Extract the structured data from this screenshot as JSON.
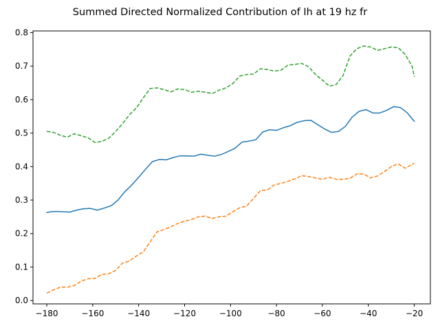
{
  "chart_data": {
    "type": "line",
    "title": "Summed Directed Normalized Contribution of Ih at 19 hz fr",
    "xlabel": "",
    "ylabel": "",
    "xlim": [
      -186,
      -13
    ],
    "ylim": [
      -0.01,
      0.805
    ],
    "xticks": [
      -180,
      -160,
      -140,
      -120,
      -100,
      -80,
      -60,
      -40,
      -20
    ],
    "yticks": [
      0.0,
      0.1,
      0.2,
      0.3,
      0.4,
      0.5,
      0.6,
      0.7,
      0.8
    ],
    "grid": false,
    "legend": "none",
    "series": [
      {
        "color": "#1f77b4",
        "style": "solid",
        "points": [
          [
            -180,
            0.263
          ],
          [
            -178,
            0.265
          ],
          [
            -176,
            0.266
          ],
          [
            -173,
            0.265
          ],
          [
            -170,
            0.264
          ],
          [
            -167,
            0.27
          ],
          [
            -164,
            0.274
          ],
          [
            -161,
            0.275
          ],
          [
            -158,
            0.27
          ],
          [
            -155,
            0.276
          ],
          [
            -152,
            0.283
          ],
          [
            -149,
            0.3
          ],
          [
            -146,
            0.325
          ],
          [
            -143,
            0.345
          ],
          [
            -140,
            0.368
          ],
          [
            -137,
            0.392
          ],
          [
            -134,
            0.415
          ],
          [
            -131,
            0.421
          ],
          [
            -128,
            0.42
          ],
          [
            -125,
            0.427
          ],
          [
            -122,
            0.432
          ],
          [
            -119,
            0.432
          ],
          [
            -116,
            0.431
          ],
          [
            -113,
            0.437
          ],
          [
            -110,
            0.434
          ],
          [
            -107,
            0.431
          ],
          [
            -104,
            0.436
          ],
          [
            -101,
            0.445
          ],
          [
            -98,
            0.455
          ],
          [
            -95,
            0.473
          ],
          [
            -92,
            0.476
          ],
          [
            -89,
            0.48
          ],
          [
            -86,
            0.503
          ],
          [
            -83,
            0.51
          ],
          [
            -80,
            0.508
          ],
          [
            -77,
            0.516
          ],
          [
            -74,
            0.522
          ],
          [
            -71,
            0.532
          ],
          [
            -68,
            0.537
          ],
          [
            -65,
            0.538
          ],
          [
            -62,
            0.525
          ],
          [
            -59,
            0.512
          ],
          [
            -56,
            0.502
          ],
          [
            -53,
            0.505
          ],
          [
            -50,
            0.52
          ],
          [
            -47,
            0.548
          ],
          [
            -44,
            0.565
          ],
          [
            -41,
            0.57
          ],
          [
            -38,
            0.56
          ],
          [
            -35,
            0.56
          ],
          [
            -32,
            0.568
          ],
          [
            -29,
            0.579
          ],
          [
            -26,
            0.576
          ],
          [
            -23,
            0.56
          ],
          [
            -20,
            0.535
          ]
        ]
      },
      {
        "color": "#ff7f0e",
        "style": "dashed",
        "points": [
          [
            -180,
            0.022
          ],
          [
            -177,
            0.032
          ],
          [
            -174,
            0.04
          ],
          [
            -171,
            0.04
          ],
          [
            -168,
            0.045
          ],
          [
            -165,
            0.058
          ],
          [
            -162,
            0.065
          ],
          [
            -159,
            0.066
          ],
          [
            -156,
            0.078
          ],
          [
            -153,
            0.08
          ],
          [
            -150,
            0.09
          ],
          [
            -147,
            0.112
          ],
          [
            -144,
            0.118
          ],
          [
            -141,
            0.133
          ],
          [
            -138,
            0.145
          ],
          [
            -135,
            0.175
          ],
          [
            -132,
            0.205
          ],
          [
            -129,
            0.212
          ],
          [
            -126,
            0.22
          ],
          [
            -123,
            0.23
          ],
          [
            -120,
            0.237
          ],
          [
            -117,
            0.242
          ],
          [
            -114,
            0.25
          ],
          [
            -111,
            0.252
          ],
          [
            -108,
            0.245
          ],
          [
            -105,
            0.25
          ],
          [
            -102,
            0.252
          ],
          [
            -99,
            0.265
          ],
          [
            -96,
            0.277
          ],
          [
            -93,
            0.282
          ],
          [
            -90,
            0.305
          ],
          [
            -87,
            0.328
          ],
          [
            -84,
            0.33
          ],
          [
            -81,
            0.345
          ],
          [
            -78,
            0.35
          ],
          [
            -75,
            0.356
          ],
          [
            -72,
            0.363
          ],
          [
            -69,
            0.373
          ],
          [
            -66,
            0.37
          ],
          [
            -63,
            0.366
          ],
          [
            -60,
            0.362
          ],
          [
            -57,
            0.368
          ],
          [
            -54,
            0.362
          ],
          [
            -51,
            0.362
          ],
          [
            -48,
            0.365
          ],
          [
            -45,
            0.378
          ],
          [
            -42,
            0.378
          ],
          [
            -39,
            0.366
          ],
          [
            -36,
            0.372
          ],
          [
            -33,
            0.385
          ],
          [
            -30,
            0.4
          ],
          [
            -27,
            0.408
          ],
          [
            -24,
            0.395
          ],
          [
            -20,
            0.41
          ]
        ]
      },
      {
        "color": "#2ca02c",
        "style": "dashed",
        "points": [
          [
            -180,
            0.505
          ],
          [
            -177,
            0.502
          ],
          [
            -174,
            0.493
          ],
          [
            -171,
            0.488
          ],
          [
            -168,
            0.498
          ],
          [
            -165,
            0.492
          ],
          [
            -162,
            0.486
          ],
          [
            -159,
            0.472
          ],
          [
            -156,
            0.475
          ],
          [
            -153,
            0.485
          ],
          [
            -150,
            0.505
          ],
          [
            -147,
            0.528
          ],
          [
            -144,
            0.555
          ],
          [
            -141,
            0.575
          ],
          [
            -138,
            0.605
          ],
          [
            -135,
            0.633
          ],
          [
            -132,
            0.635
          ],
          [
            -129,
            0.63
          ],
          [
            -126,
            0.623
          ],
          [
            -123,
            0.632
          ],
          [
            -120,
            0.63
          ],
          [
            -117,
            0.622
          ],
          [
            -114,
            0.625
          ],
          [
            -111,
            0.622
          ],
          [
            -108,
            0.618
          ],
          [
            -105,
            0.628
          ],
          [
            -102,
            0.635
          ],
          [
            -99,
            0.648
          ],
          [
            -96,
            0.67
          ],
          [
            -93,
            0.675
          ],
          [
            -90,
            0.676
          ],
          [
            -87,
            0.692
          ],
          [
            -84,
            0.69
          ],
          [
            -81,
            0.685
          ],
          [
            -78,
            0.688
          ],
          [
            -75,
            0.703
          ],
          [
            -72,
            0.705
          ],
          [
            -69,
            0.708
          ],
          [
            -66,
            0.698
          ],
          [
            -63,
            0.675
          ],
          [
            -60,
            0.658
          ],
          [
            -57,
            0.64
          ],
          [
            -54,
            0.645
          ],
          [
            -51,
            0.672
          ],
          [
            -48,
            0.73
          ],
          [
            -45,
            0.752
          ],
          [
            -42,
            0.76
          ],
          [
            -39,
            0.757
          ],
          [
            -36,
            0.747
          ],
          [
            -33,
            0.752
          ],
          [
            -30,
            0.757
          ],
          [
            -27,
            0.755
          ],
          [
            -24,
            0.735
          ],
          [
            -21,
            0.7
          ],
          [
            -20,
            0.668
          ]
        ]
      }
    ]
  }
}
